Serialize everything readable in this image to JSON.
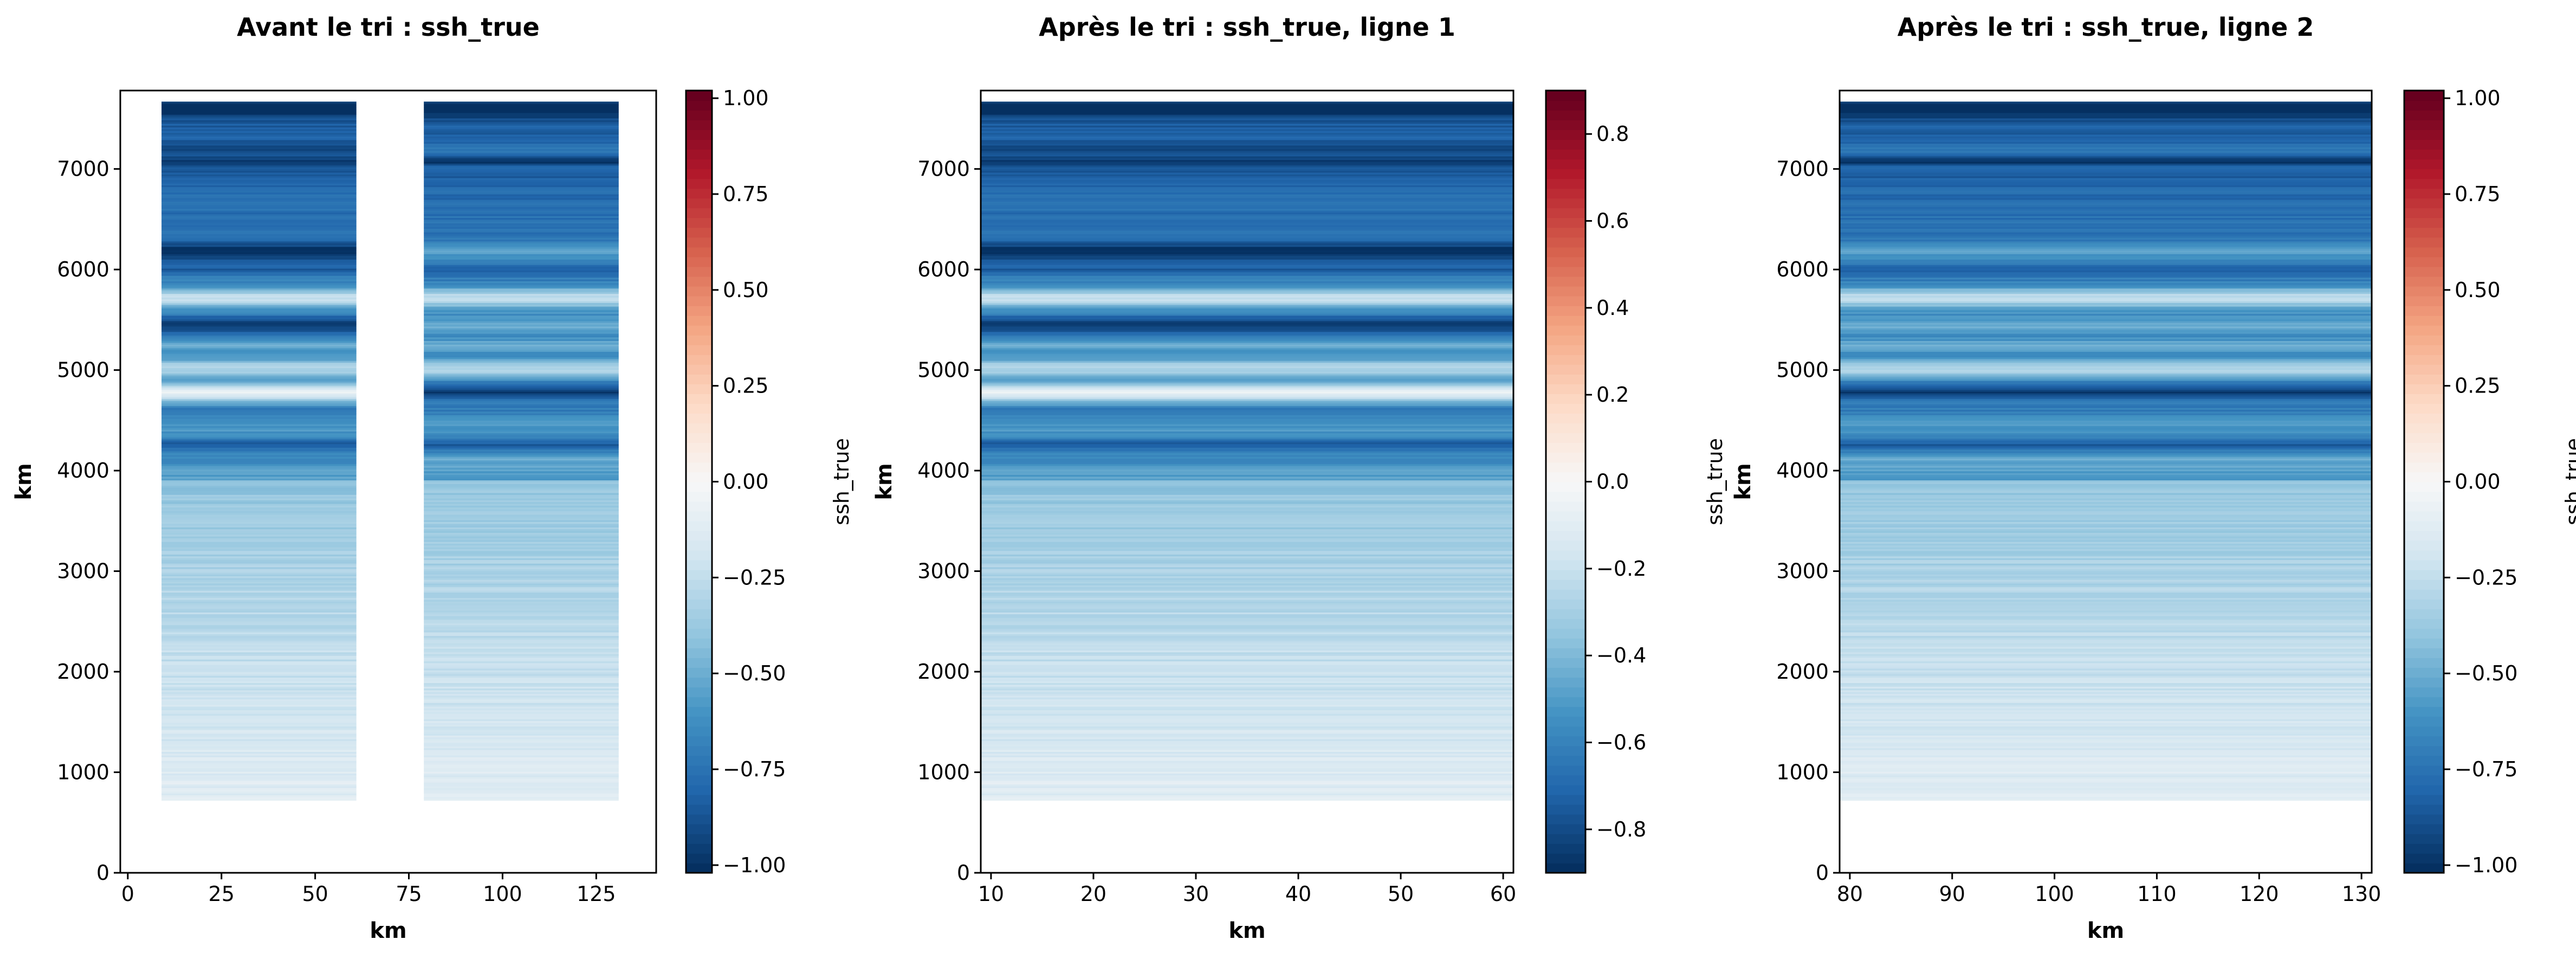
{
  "chart_data": [
    {
      "type": "heatmap",
      "title": "Avant le tri : ssh_true",
      "xlabel": "km",
      "ylabel": "km",
      "xlim": [
        -2,
        141
      ],
      "ylim": [
        0,
        7780
      ],
      "xticks": [
        "0",
        "25",
        "50",
        "75",
        "100",
        "125"
      ],
      "yticks": [
        "0",
        "1000",
        "2000",
        "3000",
        "4000",
        "5000",
        "6000",
        "7000"
      ],
      "data_x_ranges": [
        [
          9,
          61
        ],
        [
          79,
          131
        ]
      ],
      "data_y_range": [
        720,
        7670
      ],
      "colorbar": {
        "label": "ssh_true",
        "range": [
          -1.02,
          1.02
        ],
        "ticks": [
          "−1.00",
          "−0.75",
          "−0.50",
          "−0.25",
          "0.00",
          "0.25",
          "0.50",
          "0.75",
          "1.00"
        ]
      },
      "colormap": "RdBu_r"
    },
    {
      "type": "heatmap",
      "title": "Après le tri : ssh_true, ligne 1",
      "xlabel": "km",
      "ylabel": "km",
      "xlim": [
        9,
        61
      ],
      "ylim": [
        0,
        7780
      ],
      "xticks": [
        "10",
        "20",
        "30",
        "40",
        "50",
        "60"
      ],
      "yticks": [
        "0",
        "1000",
        "2000",
        "3000",
        "4000",
        "5000",
        "6000",
        "7000"
      ],
      "data_x_ranges": [
        [
          9,
          61
        ]
      ],
      "data_y_range": [
        720,
        7670
      ],
      "colorbar": {
        "label": "ssh_true",
        "range": [
          -0.9,
          0.9
        ],
        "ticks": [
          "−0.8",
          "−0.6",
          "−0.4",
          "−0.2",
          "0.0",
          "0.2",
          "0.4",
          "0.6",
          "0.8"
        ]
      },
      "colormap": "RdBu_r"
    },
    {
      "type": "heatmap",
      "title": "Après le tri : ssh_true, ligne 2",
      "xlabel": "km",
      "ylabel": "km",
      "xlim": [
        79,
        131
      ],
      "ylim": [
        0,
        7780
      ],
      "xticks": [
        "80",
        "90",
        "100",
        "110",
        "120",
        "130"
      ],
      "yticks": [
        "0",
        "1000",
        "2000",
        "3000",
        "4000",
        "5000",
        "6000",
        "7000"
      ],
      "data_x_ranges": [
        [
          79,
          131
        ]
      ],
      "data_y_range": [
        720,
        7670
      ],
      "colorbar": {
        "label": "ssh_true",
        "range": [
          -1.02,
          1.02
        ],
        "ticks": [
          "−1.00",
          "−0.75",
          "−0.50",
          "−0.25",
          "0.00",
          "0.25",
          "0.50",
          "0.75",
          "1.00"
        ]
      },
      "colormap": "RdBu_r"
    }
  ],
  "colors": {
    "dark_red": "#67001f",
    "red": "#d6604d",
    "white": "#f7f7f7",
    "blue": "#4393c3",
    "dark_blue": "#053061"
  }
}
